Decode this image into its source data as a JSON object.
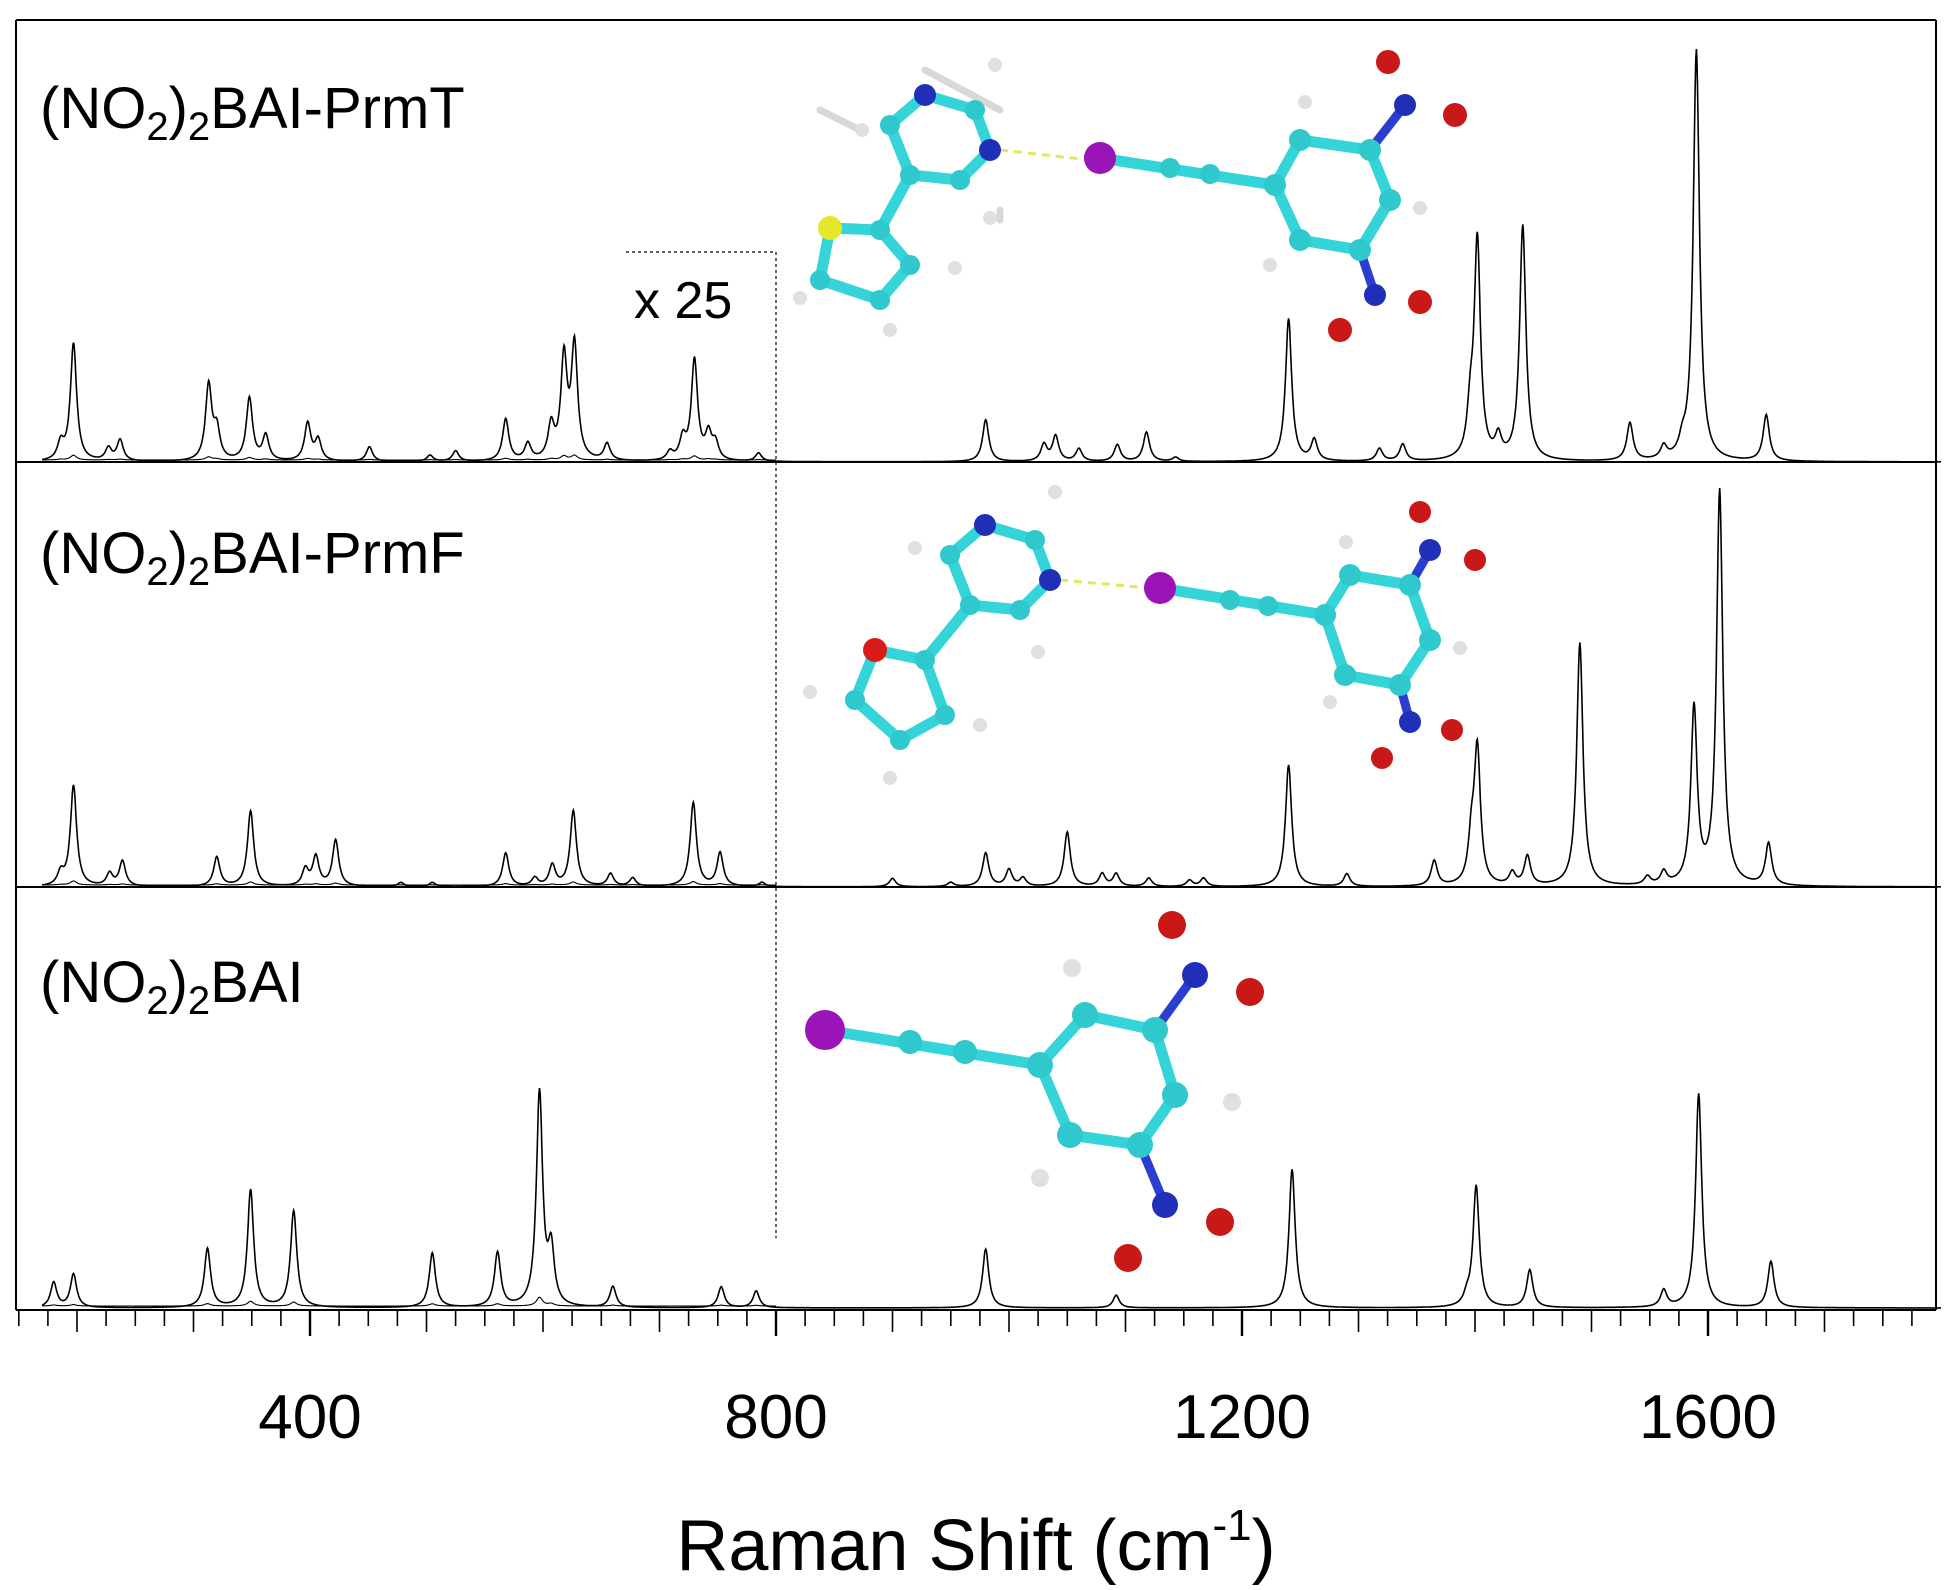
{
  "chart_data": {
    "type": "line",
    "xlabel": "Raman Shift (cm",
    "xlabel_sup": "-1",
    "xlabel_close": ")",
    "xlim": [
      170,
      1800
    ],
    "x_ticks": [
      400,
      800,
      1200,
      1600
    ],
    "x_tick_labels": [
      "400",
      "800",
      "1200",
      "1600"
    ],
    "scale_annotation": "x 25",
    "scale_region": [
      170,
      800
    ],
    "grid": false,
    "panels": [
      {
        "label_main": "(NO",
        "label_sub1": "2",
        "label_mid": ")",
        "label_sub2": "2",
        "label_tail": "BAI-PrmT",
        "peaks": [
          [
            186,
            0.04
          ],
          [
            197,
            0.28
          ],
          [
            227,
            0.03
          ],
          [
            237,
            0.05
          ],
          [
            313,
            0.18
          ],
          [
            320,
            0.07
          ],
          [
            348,
            0.15
          ],
          [
            362,
            0.06
          ],
          [
            398,
            0.09
          ],
          [
            407,
            0.05
          ],
          [
            451,
            0.035
          ],
          [
            503,
            0.015
          ],
          [
            525,
            0.025
          ],
          [
            568,
            0.1
          ],
          [
            587,
            0.04
          ],
          [
            607,
            0.08
          ],
          [
            618,
            0.24
          ],
          [
            627,
            0.27
          ],
          [
            655,
            0.04
          ],
          [
            709,
            0.02
          ],
          [
            720,
            0.05
          ],
          [
            730,
            0.24
          ],
          [
            742,
            0.06
          ],
          [
            748,
            0.04
          ],
          [
            785,
            0.02
          ],
          [
            980,
            0.1
          ],
          [
            1030,
            0.04
          ],
          [
            1040,
            0.06
          ],
          [
            1060,
            0.03
          ],
          [
            1093,
            0.04
          ],
          [
            1118,
            0.07
          ],
          [
            1143,
            0.01
          ],
          [
            1240,
            0.34
          ],
          [
            1262,
            0.05
          ],
          [
            1318,
            0.03
          ],
          [
            1338,
            0.04
          ],
          [
            1396,
            0.1
          ],
          [
            1402,
            0.52
          ],
          [
            1420,
            0.05
          ],
          [
            1441,
            0.56
          ],
          [
            1533,
            0.09
          ],
          [
            1562,
            0.03
          ],
          [
            1578,
            0.03
          ],
          [
            1590,
            0.98
          ],
          [
            1650,
            0.11
          ]
        ]
      },
      {
        "label_main": "(NO",
        "label_sub1": "2",
        "label_mid": ")",
        "label_sub2": "2",
        "label_tail": "BAI-PrmF",
        "peaks": [
          [
            186,
            0.03
          ],
          [
            197,
            0.24
          ],
          [
            228,
            0.03
          ],
          [
            239,
            0.06
          ],
          [
            320,
            0.07
          ],
          [
            349,
            0.18
          ],
          [
            396,
            0.04
          ],
          [
            405,
            0.07
          ],
          [
            422,
            0.11
          ],
          [
            478,
            0.01
          ],
          [
            505,
            0.01
          ],
          [
            568,
            0.08
          ],
          [
            593,
            0.02
          ],
          [
            608,
            0.05
          ],
          [
            626,
            0.18
          ],
          [
            658,
            0.03
          ],
          [
            677,
            0.02
          ],
          [
            729,
            0.2
          ],
          [
            752,
            0.08
          ],
          [
            788,
            0.01
          ],
          [
            900,
            0.02
          ],
          [
            950,
            0.01
          ],
          [
            980,
            0.08
          ],
          [
            1000,
            0.04
          ],
          [
            1012,
            0.02
          ],
          [
            1050,
            0.13
          ],
          [
            1080,
            0.03
          ],
          [
            1092,
            0.03
          ],
          [
            1120,
            0.02
          ],
          [
            1155,
            0.015
          ],
          [
            1167,
            0.02
          ],
          [
            1240,
            0.29
          ],
          [
            1290,
            0.03
          ],
          [
            1365,
            0.06
          ],
          [
            1397,
            0.1
          ],
          [
            1402,
            0.32
          ],
          [
            1432,
            0.03
          ],
          [
            1445,
            0.07
          ],
          [
            1490,
            0.58
          ],
          [
            1548,
            0.02
          ],
          [
            1562,
            0.03
          ],
          [
            1588,
            0.42
          ],
          [
            1610,
            0.94
          ],
          [
            1652,
            0.1
          ]
        ]
      },
      {
        "label_main": "(NO",
        "label_sub1": "2",
        "label_mid": ")",
        "label_sub2": "2",
        "label_tail": "BAI",
        "peaks": [
          [
            180,
            0.06
          ],
          [
            197,
            0.08
          ],
          [
            312,
            0.14
          ],
          [
            349,
            0.28
          ],
          [
            386,
            0.23
          ],
          [
            505,
            0.13
          ],
          [
            561,
            0.13
          ],
          [
            597,
            0.51
          ],
          [
            607,
            0.13
          ],
          [
            660,
            0.05
          ],
          [
            753,
            0.05
          ],
          [
            783,
            0.04
          ],
          [
            980,
            0.14
          ],
          [
            1092,
            0.03
          ],
          [
            1243,
            0.33
          ],
          [
            1393,
            0.02
          ],
          [
            1401,
            0.29
          ],
          [
            1447,
            0.09
          ],
          [
            1562,
            0.04
          ],
          [
            1592,
            0.51
          ],
          [
            1654,
            0.11
          ]
        ]
      }
    ]
  }
}
